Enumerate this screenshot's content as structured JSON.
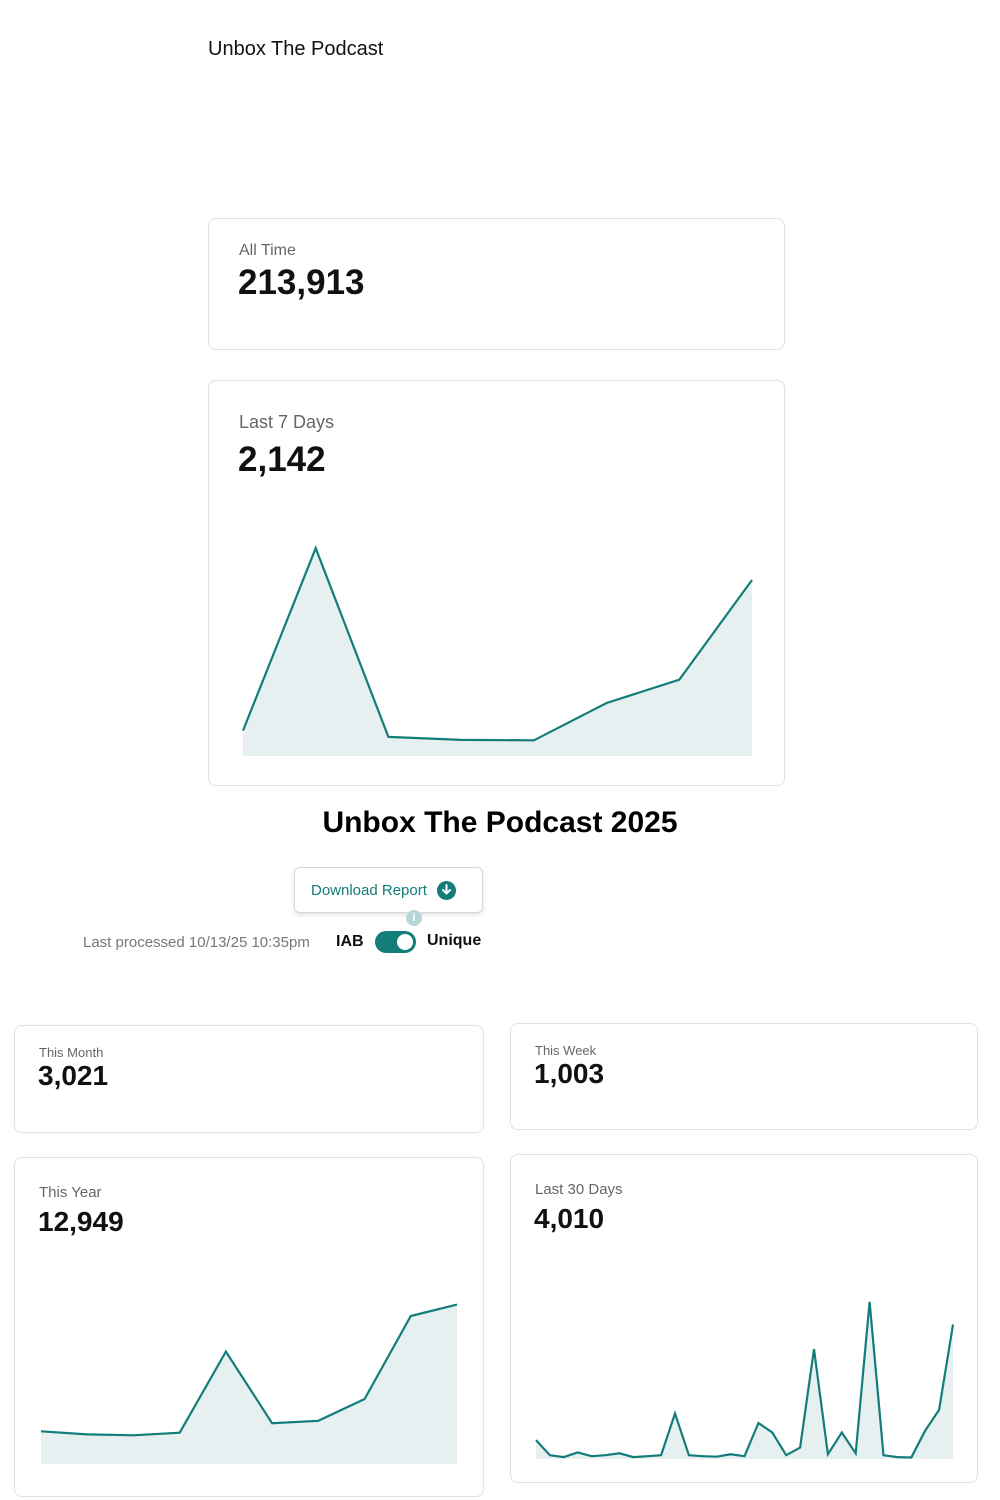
{
  "app": {
    "title": "Unbox The Podcast"
  },
  "stats": {
    "all_time": {
      "label": "All Time",
      "value": "213,913"
    },
    "last_7_days": {
      "label": "Last 7 Days",
      "value": "2,142"
    },
    "this_month": {
      "label": "This Month",
      "value": "3,021"
    },
    "this_week": {
      "label": "This Week",
      "value": "1,003"
    },
    "this_year": {
      "label": "This Year",
      "value": "12,949"
    },
    "last_30_days": {
      "label": "Last 30 Days",
      "value": "4,010"
    }
  },
  "section": {
    "title": "Unbox The Podcast 2025"
  },
  "controls": {
    "download_label": "Download Report",
    "download_icon": "download-arrow-icon",
    "info_icon": "info-icon",
    "last_processed": "Last processed 10/13/25 10:35pm",
    "toggle_left": "IAB",
    "toggle_right": "Unique",
    "toggle_on": true
  },
  "colors": {
    "accent": "#137d7a",
    "area_fill": "#e7f0f0"
  },
  "chart_data": [
    {
      "id": "last7",
      "type": "area",
      "title": "Last 7 Days",
      "values": [
        60,
        490,
        45,
        38,
        37,
        125,
        180,
        415
      ]
    },
    {
      "id": "year",
      "type": "area",
      "title": "This Year",
      "values": [
        690,
        625,
        605,
        660,
        2370,
        860,
        910,
        1370,
        3120,
        3360
      ]
    },
    {
      "id": "last30",
      "type": "area",
      "title": "Last 30 Days",
      "values": [
        100,
        20,
        10,
        35,
        15,
        20,
        30,
        10,
        15,
        20,
        240,
        20,
        15,
        12,
        25,
        15,
        190,
        140,
        20,
        60,
        580,
        25,
        140,
        30,
        830,
        20,
        10,
        8,
        150,
        260,
        710
      ]
    }
  ]
}
